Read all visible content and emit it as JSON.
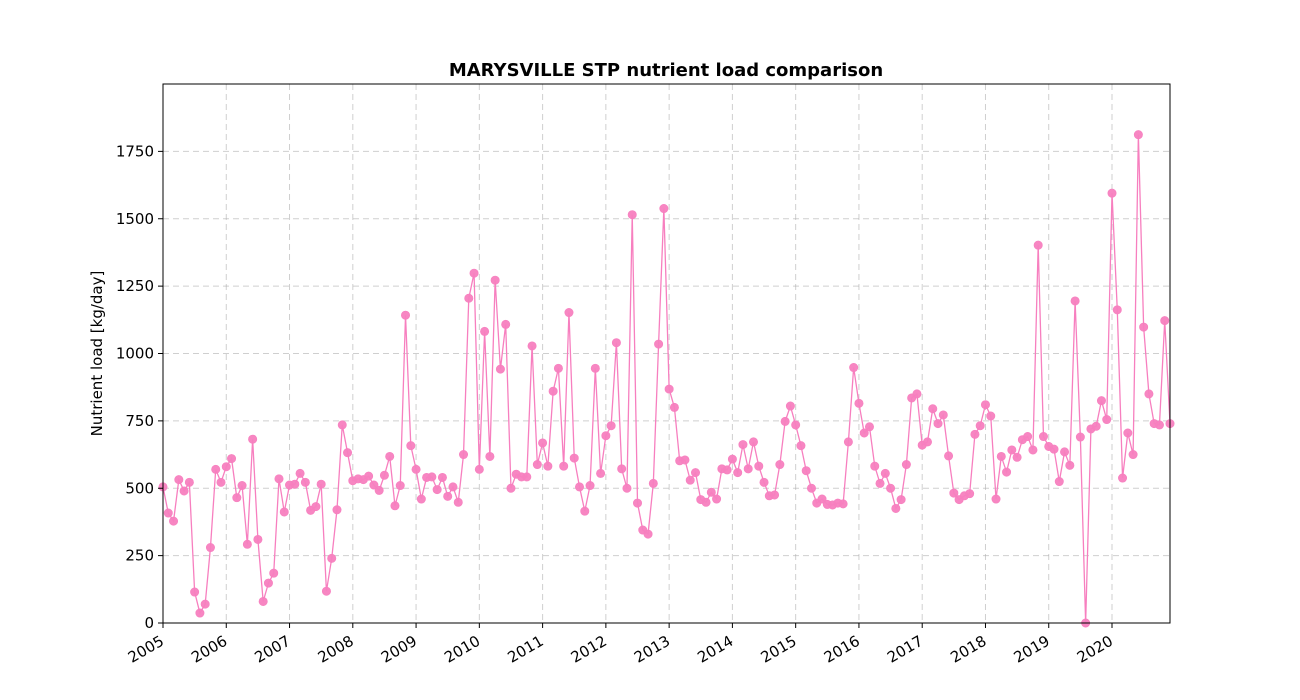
{
  "chart_data": {
    "type": "line",
    "title": "MARYSVILLE STP nutrient load comparison",
    "xlabel": "",
    "ylabel": "Nutrient load [kg/day]",
    "x_start": "2005-01",
    "x_step": "month",
    "x_tick_labels": [
      "2005",
      "2006",
      "2007",
      "2008",
      "2009",
      "2010",
      "2011",
      "2012",
      "2013",
      "2014",
      "2015",
      "2016",
      "2017",
      "2018",
      "2019",
      "2020"
    ],
    "xlim": [
      "2005-01",
      "2020-12"
    ],
    "ylim": [
      0,
      2000
    ],
    "y_ticks": [
      0,
      250,
      500,
      750,
      1000,
      1250,
      1500,
      1750
    ],
    "grid": true,
    "legend": "none",
    "series": [
      {
        "color": "#f77fbf",
        "marker": "circle",
        "x": [
          "2005-01",
          "2005-02",
          "2005-03",
          "2005-04",
          "2005-05",
          "2005-06",
          "2005-07",
          "2005-08",
          "2005-09",
          "2005-10",
          "2005-11",
          "2005-12",
          "2006-01",
          "2006-02",
          "2006-03",
          "2006-04",
          "2006-05",
          "2006-06",
          "2006-07",
          "2006-08",
          "2006-09",
          "2006-10",
          "2006-11",
          "2006-12",
          "2007-01",
          "2007-02",
          "2007-03",
          "2007-04",
          "2007-05",
          "2007-06",
          "2007-07",
          "2007-08",
          "2007-09",
          "2007-10",
          "2007-11",
          "2007-12",
          "2008-01",
          "2008-02",
          "2008-03",
          "2008-04",
          "2008-05",
          "2008-06",
          "2008-07",
          "2008-08",
          "2008-09",
          "2008-10",
          "2008-11",
          "2008-12",
          "2009-01",
          "2009-02",
          "2009-03",
          "2009-04",
          "2009-05",
          "2009-06",
          "2009-07",
          "2009-08",
          "2009-09",
          "2009-10",
          "2009-11",
          "2009-12",
          "2010-01",
          "2010-02",
          "2010-03",
          "2010-04",
          "2010-05",
          "2010-06",
          "2010-07",
          "2010-08",
          "2010-09",
          "2010-10",
          "2010-11",
          "2010-12",
          "2011-01",
          "2011-02",
          "2011-03",
          "2011-04",
          "2011-05",
          "2011-06",
          "2011-07",
          "2011-08",
          "2011-09",
          "2011-10",
          "2011-11",
          "2011-12",
          "2012-01",
          "2012-02",
          "2012-03",
          "2012-04",
          "2012-05",
          "2012-06",
          "2012-07",
          "2012-08",
          "2012-09",
          "2012-10",
          "2012-11",
          "2012-12",
          "2013-01",
          "2013-02",
          "2013-03",
          "2013-04",
          "2013-05",
          "2013-06",
          "2013-07",
          "2013-08",
          "2013-09",
          "2013-10",
          "2013-11",
          "2013-12",
          "2014-01",
          "2014-02",
          "2014-03",
          "2014-04",
          "2014-05",
          "2014-06",
          "2014-07",
          "2014-08",
          "2014-09",
          "2014-10",
          "2014-11",
          "2014-12",
          "2015-01",
          "2015-02",
          "2015-03",
          "2015-04",
          "2015-05",
          "2015-06",
          "2015-07",
          "2015-08",
          "2015-09",
          "2015-10",
          "2015-11",
          "2015-12",
          "2016-01",
          "2016-02",
          "2016-03",
          "2016-04",
          "2016-05",
          "2016-06",
          "2016-07",
          "2016-08",
          "2016-09",
          "2016-10",
          "2016-11",
          "2016-12",
          "2017-01",
          "2017-02",
          "2017-03",
          "2017-04",
          "2017-05",
          "2017-06",
          "2017-07",
          "2017-08",
          "2017-09",
          "2017-10",
          "2017-11",
          "2017-12",
          "2018-01",
          "2018-02",
          "2018-03",
          "2018-04",
          "2018-05",
          "2018-06",
          "2018-07",
          "2018-08",
          "2018-09",
          "2018-10",
          "2018-11",
          "2018-12",
          "2019-01",
          "2019-02",
          "2019-03",
          "2019-04",
          "2019-05",
          "2019-06",
          "2019-07",
          "2019-08",
          "2019-09",
          "2019-10",
          "2019-11",
          "2019-12",
          "2020-01",
          "2020-02",
          "2020-03",
          "2020-04",
          "2020-05",
          "2020-06",
          "2020-07",
          "2020-08",
          "2020-09",
          "2020-10",
          "2020-11",
          "2020-12"
        ],
        "y": [
          505,
          408,
          378,
          532,
          490,
          522,
          115,
          37,
          70,
          280,
          570,
          522,
          580,
          610,
          465,
          510,
          292,
          682,
          310,
          80,
          148,
          185,
          535,
          412,
          512,
          515,
          555,
          522,
          418,
          432,
          515,
          118,
          240,
          420,
          735,
          632,
          528,
          535,
          532,
          545,
          512,
          492,
          548,
          618,
          435,
          510,
          1142,
          658,
          570,
          460,
          540,
          542,
          495,
          540,
          470,
          505,
          448,
          625,
          1205,
          1298,
          570,
          1082,
          618,
          1272,
          942,
          1108,
          500,
          552,
          542,
          542,
          1028,
          588,
          668,
          582,
          860,
          945,
          582,
          1152,
          612,
          505,
          415,
          510,
          945,
          555,
          695,
          732,
          1040,
          572,
          500,
          1515,
          445,
          345,
          330,
          518,
          1035,
          1538,
          868,
          800,
          602,
          605,
          530,
          558,
          458,
          448,
          485,
          460,
          572,
          568,
          608,
          558,
          662,
          572,
          672,
          582,
          522,
          472,
          475,
          588,
          748,
          805,
          735,
          658,
          565,
          500,
          445,
          460,
          440,
          438,
          445,
          442,
          672,
          948,
          815,
          705,
          728,
          582,
          518,
          555,
          500,
          425,
          458,
          588,
          835,
          850,
          660,
          672,
          795,
          740,
          772,
          620,
          482,
          458,
          472,
          480,
          700,
          732,
          810,
          768,
          460,
          618,
          560,
          642,
          615,
          680,
          692,
          642,
          1402,
          692,
          655,
          645,
          525,
          635,
          585,
          1195,
          690,
          0,
          720,
          730,
          825,
          755,
          1595,
          1162,
          538,
          705,
          625,
          1812,
          1098,
          850,
          740,
          735,
          1122,
          740
        ]
      }
    ]
  }
}
